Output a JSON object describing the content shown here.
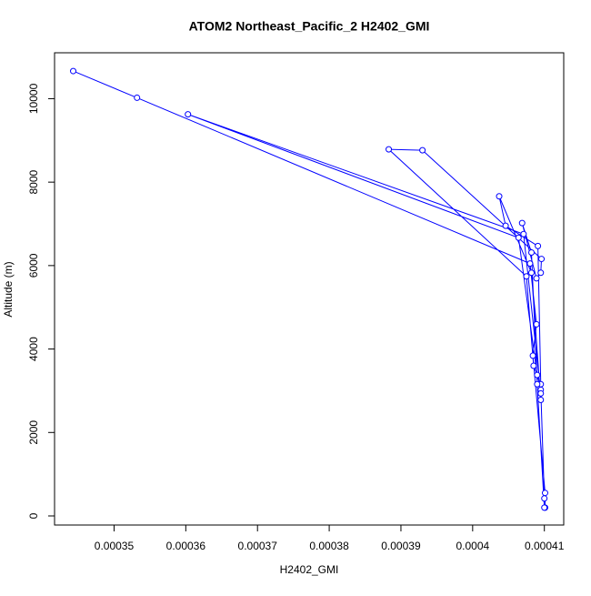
{
  "chart_data": {
    "type": "line",
    "title": "ATOM2 Northeast_Pacific_2 H2402_GMI",
    "x_label": "H2402_GMI",
    "y_label": "Altitude (m)",
    "color": "#0000ff",
    "markers": true,
    "x": [
      0.0003443,
      0.0003532,
      0.000408,
      0.0004089,
      0.0004084,
      0.0004101,
      0.0004101,
      0.00041,
      0.0004095,
      0.000409,
      0.0004064,
      0.0003603,
      0.0004071,
      0.0004095,
      0.0004095,
      0.0004082,
      0.0004037,
      0.0004046,
      0.0004091,
      0.0004095,
      0.0004085,
      0.0004075,
      0.0003883,
      0.000393,
      0.0004096,
      0.0004095,
      0.0004089,
      0.0004069,
      0.0004082,
      0.000409,
      0.00041
    ],
    "values": [
      10662,
      10022,
      6049,
      4592,
      3841,
      552,
      199,
      419,
      3024,
      3377,
      6667,
      9625,
      6755,
      2936,
      2781,
      5828,
      7660,
      6954,
      6468,
      3157,
      3598,
      5740,
      8786,
      8764,
      6159,
      5828,
      5695,
      7020,
      6313,
      3157,
      199
    ],
    "xlim": [
      0.0003417,
      0.0004127
    ],
    "ylim": [
      -218,
      11100
    ],
    "xticks": [
      0.00035,
      0.00036,
      0.00037,
      0.00038,
      0.00039,
      0.0004,
      0.00041
    ],
    "yticks": [
      0,
      2000,
      4000,
      6000,
      8000,
      10000
    ]
  }
}
